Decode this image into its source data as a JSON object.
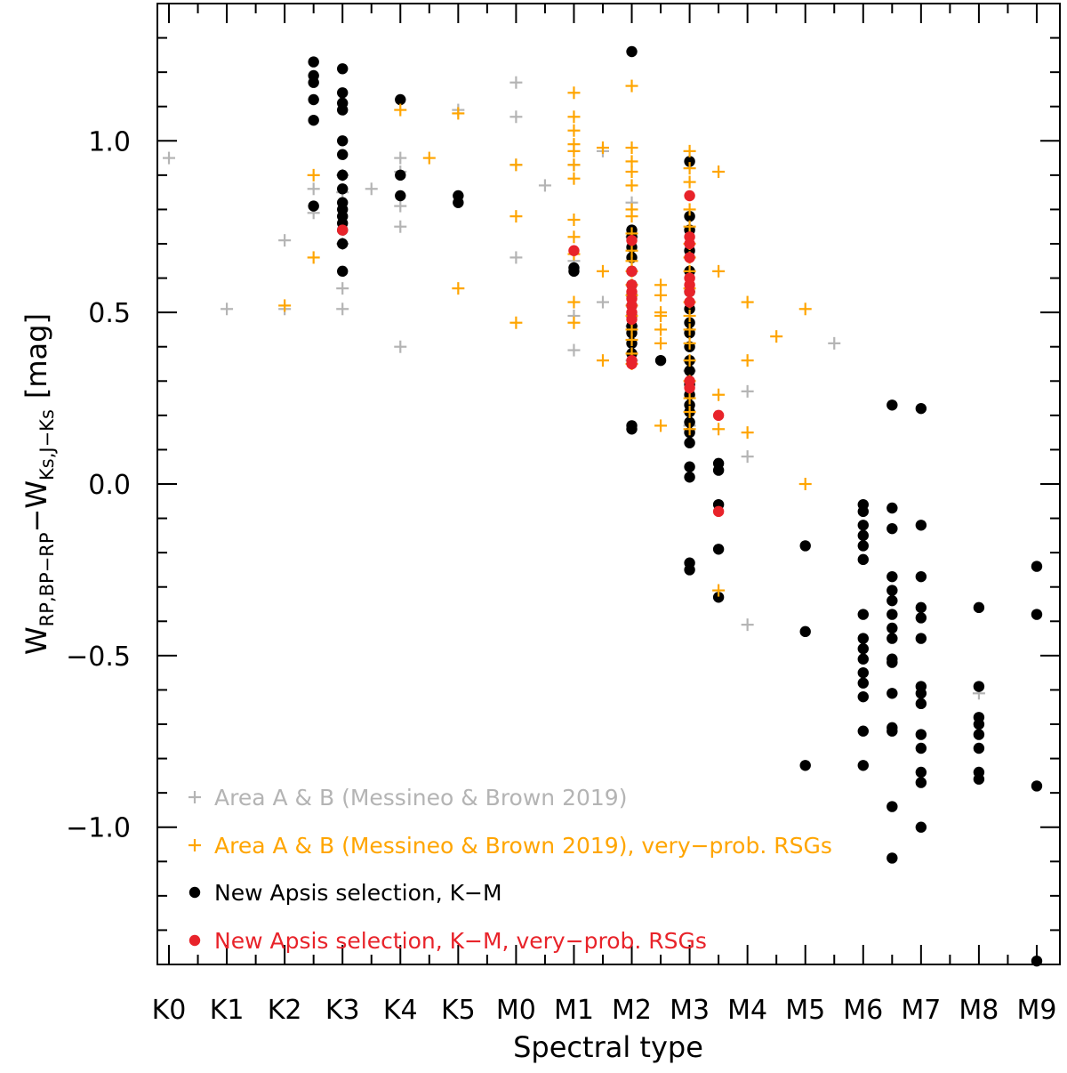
{
  "chart_data": {
    "type": "scatter",
    "title": "",
    "xlabel": "Spectral type",
    "ylabel": {
      "main": "W",
      "sub1": "RP,BP−RP",
      "minus": "−W",
      "sub2": "Ks,J−Ks",
      "unit": "[mag]"
    },
    "categories": [
      "K0",
      "K1",
      "K2",
      "K3",
      "K4",
      "K5",
      "M0",
      "M1",
      "M2",
      "M3",
      "M4",
      "M5",
      "M6",
      "M7",
      "M8",
      "M9"
    ],
    "x_range": [
      -0.2,
      15.4
    ],
    "ylim": [
      -1.4,
      1.4
    ],
    "y_ticks": [
      {
        "value": 1.0,
        "label": "1.0"
      },
      {
        "value": 0.5,
        "label": "0.5"
      },
      {
        "value": 0.0,
        "label": "0.0"
      },
      {
        "value": -0.5,
        "label": "−0.5"
      },
      {
        "value": -1.0,
        "label": "−1.0"
      }
    ],
    "legend_position": "bottom-left",
    "series": [
      {
        "name": "Area A & B (Messineo & Brown 2019)",
        "marker": "plus",
        "color": "#b4b4b4",
        "points": [
          [
            0,
            0.95
          ],
          [
            1,
            0.51
          ],
          [
            2,
            0.71
          ],
          [
            2,
            0.51
          ],
          [
            2.5,
            0.86
          ],
          [
            2.5,
            0.79
          ],
          [
            3,
            0.9
          ],
          [
            3,
            0.85
          ],
          [
            3,
            0.57
          ],
          [
            3,
            0.51
          ],
          [
            3,
            0.7
          ],
          [
            3.5,
            0.86
          ],
          [
            4,
            0.95
          ],
          [
            4,
            0.91
          ],
          [
            4,
            0.81
          ],
          [
            4,
            0.75
          ],
          [
            4,
            0.4
          ],
          [
            5,
            1.09
          ],
          [
            6,
            1.17
          ],
          [
            6,
            1.07
          ],
          [
            6,
            0.93
          ],
          [
            6,
            0.66
          ],
          [
            6.5,
            0.87
          ],
          [
            7,
            0.93
          ],
          [
            7,
            0.65
          ],
          [
            7,
            0.49
          ],
          [
            7,
            0.39
          ],
          [
            7.5,
            0.97
          ],
          [
            7.5,
            0.53
          ],
          [
            8,
            0.82
          ],
          [
            8,
            0.72
          ],
          [
            8,
            0.58
          ],
          [
            8,
            0.46
          ],
          [
            8,
            0.36
          ],
          [
            9,
            0.33
          ],
          [
            9,
            0.17
          ],
          [
            10,
            0.27
          ],
          [
            10,
            0.08
          ],
          [
            10,
            -0.41
          ],
          [
            11.5,
            0.41
          ],
          [
            14,
            -0.61
          ]
        ]
      },
      {
        "name": "Area A & B (Messineo & Brown 2019), very−prob. RSGs",
        "marker": "plus",
        "color": "#ffa500",
        "points": [
          [
            2.5,
            0.9
          ],
          [
            2.5,
            0.66
          ],
          [
            2,
            0.52
          ],
          [
            4,
            1.09
          ],
          [
            4.5,
            0.95
          ],
          [
            5,
            1.08
          ],
          [
            5,
            0.57
          ],
          [
            6,
            0.93
          ],
          [
            6,
            0.78
          ],
          [
            6,
            0.47
          ],
          [
            7,
            1.14
          ],
          [
            7,
            1.07
          ],
          [
            7,
            1.03
          ],
          [
            7,
            0.99
          ],
          [
            7,
            0.97
          ],
          [
            7,
            0.93
          ],
          [
            7,
            0.89
          ],
          [
            7,
            0.77
          ],
          [
            7,
            0.72
          ],
          [
            7,
            0.67
          ],
          [
            7,
            0.53
          ],
          [
            7,
            0.47
          ],
          [
            7.5,
            0.98
          ],
          [
            7.5,
            0.62
          ],
          [
            7.5,
            0.36
          ],
          [
            8,
            1.16
          ],
          [
            8,
            0.98
          ],
          [
            8,
            0.94
          ],
          [
            8,
            0.91
          ],
          [
            8,
            0.87
          ],
          [
            8,
            0.8
          ],
          [
            8,
            0.78
          ],
          [
            8,
            0.73
          ],
          [
            8,
            0.68
          ],
          [
            8,
            0.65
          ],
          [
            8,
            0.62
          ],
          [
            8,
            0.58
          ],
          [
            8,
            0.55
          ],
          [
            8,
            0.52
          ],
          [
            8,
            0.49
          ],
          [
            8,
            0.45
          ],
          [
            8,
            0.42
          ],
          [
            8,
            0.38
          ],
          [
            8,
            0.35
          ],
          [
            8.5,
            0.58
          ],
          [
            8.5,
            0.55
          ],
          [
            8.5,
            0.5
          ],
          [
            8.5,
            0.49
          ],
          [
            8.5,
            0.45
          ],
          [
            8.5,
            0.41
          ],
          [
            8.5,
            0.17
          ],
          [
            9,
            0.97
          ],
          [
            9,
            0.92
          ],
          [
            9,
            0.88
          ],
          [
            9,
            0.8
          ],
          [
            9,
            0.75
          ],
          [
            9,
            0.7
          ],
          [
            9,
            0.66
          ],
          [
            9,
            0.62
          ],
          [
            9,
            0.57
          ],
          [
            9,
            0.53
          ],
          [
            9,
            0.49
          ],
          [
            9,
            0.45
          ],
          [
            9,
            0.41
          ],
          [
            9,
            0.36
          ],
          [
            9,
            0.3
          ],
          [
            9,
            0.25
          ],
          [
            9,
            0.21
          ],
          [
            9,
            0.16
          ],
          [
            9.5,
            0.91
          ],
          [
            9.5,
            0.62
          ],
          [
            9.5,
            0.26
          ],
          [
            9.5,
            0.16
          ],
          [
            9.5,
            -0.31
          ],
          [
            10,
            0.53
          ],
          [
            10,
            0.36
          ],
          [
            10,
            0.15
          ],
          [
            10.5,
            0.43
          ],
          [
            11,
            0.51
          ],
          [
            11,
            0.0
          ]
        ]
      },
      {
        "name": "New Apsis selection, K−M",
        "marker": "dot",
        "color": "#000000",
        "points": [
          [
            2.5,
            1.23
          ],
          [
            2.5,
            1.19
          ],
          [
            2.5,
            1.17
          ],
          [
            2.5,
            1.12
          ],
          [
            2.5,
            1.06
          ],
          [
            2.5,
            0.81
          ],
          [
            3,
            1.21
          ],
          [
            3,
            1.14
          ],
          [
            3,
            1.11
          ],
          [
            3,
            1.09
          ],
          [
            3,
            1.0
          ],
          [
            3,
            0.96
          ],
          [
            3,
            0.9
          ],
          [
            3,
            0.86
          ],
          [
            3,
            0.82
          ],
          [
            3,
            0.8
          ],
          [
            3,
            0.78
          ],
          [
            3,
            0.76
          ],
          [
            3,
            0.74
          ],
          [
            3,
            0.7
          ],
          [
            3,
            0.62
          ],
          [
            4,
            1.12
          ],
          [
            4,
            0.9
          ],
          [
            4,
            0.84
          ],
          [
            5,
            0.84
          ],
          [
            5,
            0.82
          ],
          [
            7,
            0.63
          ],
          [
            7,
            0.62
          ],
          [
            8,
            1.26
          ],
          [
            8,
            0.74
          ],
          [
            8,
            0.72
          ],
          [
            8,
            0.69
          ],
          [
            8,
            0.66
          ],
          [
            8,
            0.62
          ],
          [
            8,
            0.58
          ],
          [
            8,
            0.55
          ],
          [
            8,
            0.52
          ],
          [
            8,
            0.49
          ],
          [
            8,
            0.46
          ],
          [
            8,
            0.44
          ],
          [
            8,
            0.41
          ],
          [
            8,
            0.38
          ],
          [
            8,
            0.17
          ],
          [
            8,
            0.16
          ],
          [
            8.5,
            0.36
          ],
          [
            9,
            0.94
          ],
          [
            9,
            0.78
          ],
          [
            9,
            0.74
          ],
          [
            9,
            0.68
          ],
          [
            9,
            0.62
          ],
          [
            9,
            0.56
          ],
          [
            9,
            0.51
          ],
          [
            9,
            0.47
          ],
          [
            9,
            0.44
          ],
          [
            9,
            0.4
          ],
          [
            9,
            0.36
          ],
          [
            9,
            0.33
          ],
          [
            9,
            0.29
          ],
          [
            9,
            0.26
          ],
          [
            9,
            0.23
          ],
          [
            9,
            0.21
          ],
          [
            9,
            0.18
          ],
          [
            9,
            0.15
          ],
          [
            9,
            0.12
          ],
          [
            9,
            0.05
          ],
          [
            9,
            0.02
          ],
          [
            9,
            -0.23
          ],
          [
            9,
            -0.25
          ],
          [
            9.5,
            0.06
          ],
          [
            9.5,
            0.04
          ],
          [
            9.5,
            -0.06
          ],
          [
            9.5,
            -0.19
          ],
          [
            9.5,
            -0.33
          ],
          [
            11,
            -0.18
          ],
          [
            11,
            -0.43
          ],
          [
            11,
            -0.82
          ],
          [
            12,
            -0.06
          ],
          [
            12,
            -0.08
          ],
          [
            12,
            -0.12
          ],
          [
            12,
            -0.15
          ],
          [
            12,
            -0.18
          ],
          [
            12,
            -0.22
          ],
          [
            12,
            -0.38
          ],
          [
            12,
            -0.45
          ],
          [
            12,
            -0.48
          ],
          [
            12,
            -0.51
          ],
          [
            12,
            -0.55
          ],
          [
            12,
            -0.58
          ],
          [
            12,
            -0.62
          ],
          [
            12,
            -0.72
          ],
          [
            12,
            -0.82
          ],
          [
            12.5,
            0.23
          ],
          [
            12.5,
            -0.07
          ],
          [
            12.5,
            -0.13
          ],
          [
            12.5,
            -0.27
          ],
          [
            12.5,
            -0.31
          ],
          [
            12.5,
            -0.34
          ],
          [
            12.5,
            -0.38
          ],
          [
            12.5,
            -0.42
          ],
          [
            12.5,
            -0.45
          ],
          [
            12.5,
            -0.51
          ],
          [
            12.5,
            -0.52
          ],
          [
            12.5,
            -0.61
          ],
          [
            12.5,
            -0.71
          ],
          [
            12.5,
            -0.72
          ],
          [
            12.5,
            -0.94
          ],
          [
            12.5,
            -1.09
          ],
          [
            13,
            0.22
          ],
          [
            13,
            -0.12
          ],
          [
            13,
            -0.27
          ],
          [
            13,
            -0.36
          ],
          [
            13,
            -0.39
          ],
          [
            13,
            -0.45
          ],
          [
            13,
            -0.59
          ],
          [
            13,
            -0.61
          ],
          [
            13,
            -0.64
          ],
          [
            13,
            -0.73
          ],
          [
            13,
            -0.77
          ],
          [
            13,
            -0.84
          ],
          [
            13,
            -0.87
          ],
          [
            13,
            -1.0
          ],
          [
            14,
            -0.36
          ],
          [
            14,
            -0.59
          ],
          [
            14,
            -0.68
          ],
          [
            14,
            -0.7
          ],
          [
            14,
            -0.73
          ],
          [
            14,
            -0.77
          ],
          [
            14,
            -0.84
          ],
          [
            14,
            -0.86
          ],
          [
            15,
            -0.24
          ],
          [
            15,
            -0.38
          ],
          [
            15,
            -0.88
          ],
          [
            15,
            -1.39
          ]
        ]
      },
      {
        "name": "New Apsis selection, K−M, very−prob. RSGs",
        "marker": "dot",
        "color": "#e8232a",
        "points": [
          [
            3,
            0.74
          ],
          [
            7,
            0.68
          ],
          [
            8,
            0.71
          ],
          [
            8,
            0.62
          ],
          [
            8,
            0.58
          ],
          [
            8,
            0.56
          ],
          [
            8,
            0.54
          ],
          [
            8,
            0.52
          ],
          [
            8,
            0.5
          ],
          [
            8,
            0.48
          ],
          [
            8,
            0.36
          ],
          [
            8,
            0.35
          ],
          [
            9,
            0.84
          ],
          [
            9,
            0.72
          ],
          [
            9,
            0.7
          ],
          [
            9,
            0.66
          ],
          [
            9,
            0.6
          ],
          [
            9,
            0.58
          ],
          [
            9,
            0.56
          ],
          [
            9,
            0.53
          ],
          [
            9,
            0.3
          ],
          [
            9,
            0.28
          ],
          [
            9.5,
            0.2
          ],
          [
            9.5,
            -0.08
          ]
        ]
      }
    ]
  }
}
